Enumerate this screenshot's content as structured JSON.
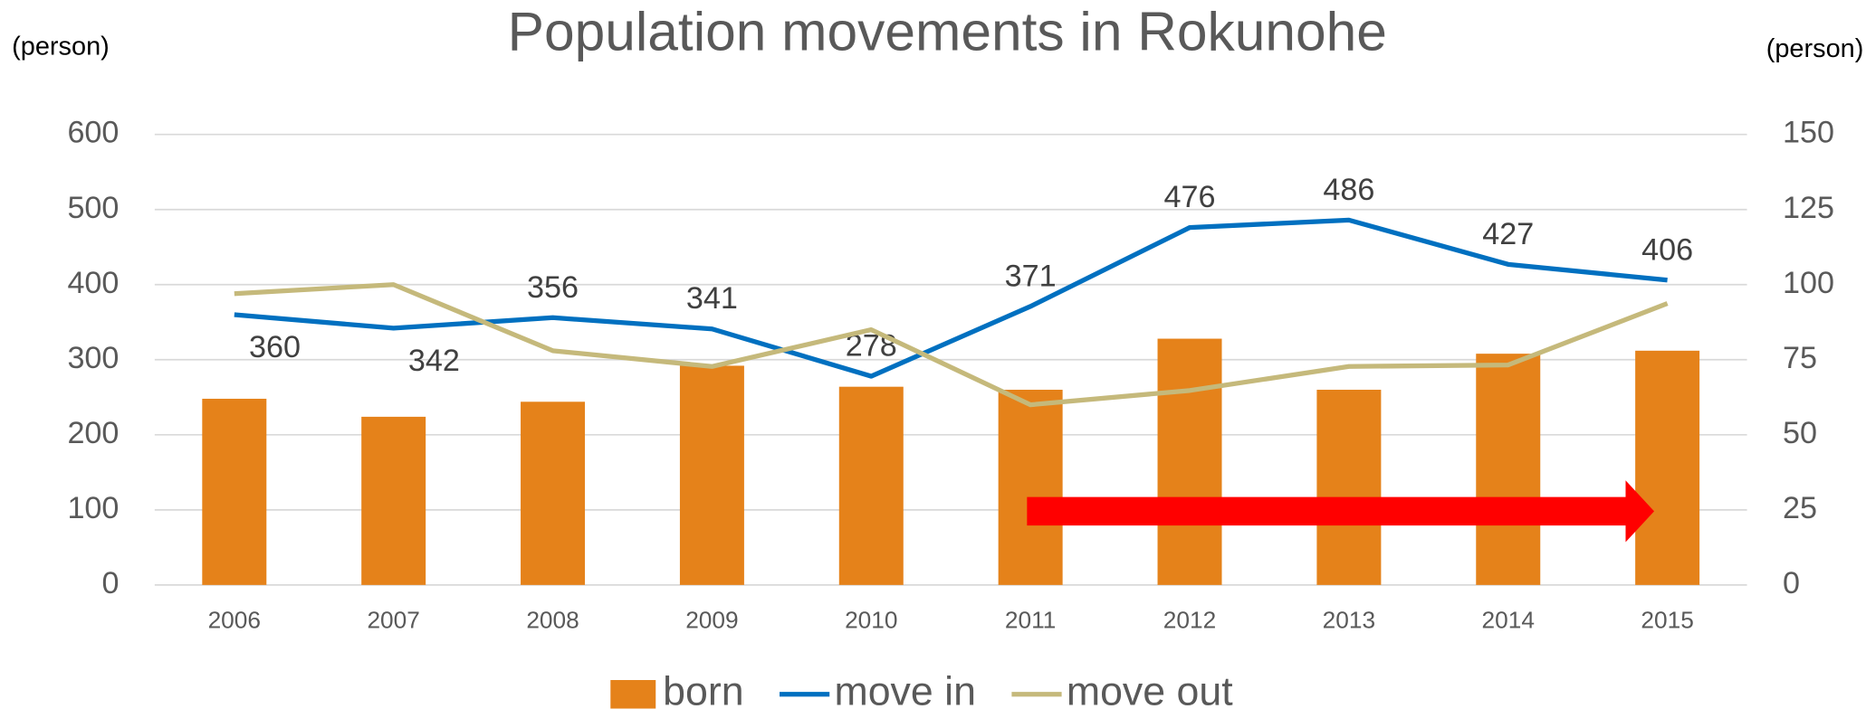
{
  "chart_data": {
    "type": "bar_line",
    "title": "Population movements in Rokunohe",
    "y_label": "(person)",
    "y2_label": "(person)",
    "categories": [
      "2006",
      "2007",
      "2008",
      "2009",
      "2010",
      "2011",
      "2012",
      "2013",
      "2014",
      "2015"
    ],
    "series": [
      {
        "name": "born",
        "type": "bar",
        "axis": "y2",
        "color": "#e5821a",
        "values": [
          62,
          56,
          61,
          73,
          66,
          65,
          82,
          65,
          77,
          78
        ]
      },
      {
        "name": "move in",
        "type": "line",
        "axis": "y",
        "color": "#0070c0",
        "values": [
          360,
          342,
          356,
          341,
          278,
          371,
          476,
          486,
          427,
          406
        ],
        "data_labels": true
      },
      {
        "name": "move out",
        "type": "line",
        "axis": "y",
        "color": "#c5b97b",
        "values": [
          388,
          400,
          312,
          291,
          340,
          240,
          259,
          291,
          293,
          375
        ]
      }
    ],
    "ylim": [
      0,
      600
    ],
    "yticks": [
      0,
      100,
      200,
      300,
      400,
      500,
      600
    ],
    "y2lim": [
      0,
      150
    ],
    "y2ticks": [
      0,
      25,
      50,
      75,
      100,
      125,
      150
    ],
    "grid": true,
    "legend": "bottom"
  }
}
